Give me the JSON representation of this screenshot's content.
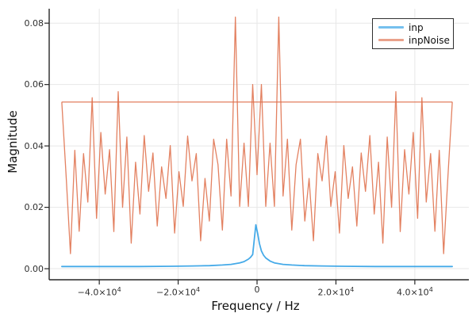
{
  "chart_data": {
    "type": "line",
    "title": "",
    "xlabel": "Frequency / Hz",
    "ylabel": "Magnitude",
    "xlim": [
      -52700,
      53700
    ],
    "ylim": [
      -0.0036,
      0.0847
    ],
    "grid": true,
    "grid_color": "#e7e7e7",
    "axis_color": "#262626",
    "background_color": "#ffffff",
    "legend": {
      "position": "top-right",
      "border_color": "#2f2f2f",
      "background": "#ffffff"
    },
    "x_ticks": {
      "values": [
        -40000,
        -20000,
        0,
        20000,
        40000
      ],
      "labels": [
        "−4.0×10^4",
        "−2.0×10^4",
        "0",
        "2.0×10^4",
        "4.0×10^4"
      ]
    },
    "y_ticks": {
      "values": [
        0.0,
        0.02,
        0.04,
        0.06,
        0.08
      ],
      "labels": [
        "0.00",
        "0.02",
        "0.04",
        "0.06",
        "0.08"
      ]
    },
    "series": [
      {
        "name": "inp",
        "color": "#2b9ee5",
        "points": [
          [
            -49500,
            0.0007
          ],
          [
            -40000,
            0.0007
          ],
          [
            -30000,
            0.0007
          ],
          [
            -22000,
            0.0008
          ],
          [
            -16500,
            0.0009
          ],
          [
            -12000,
            0.001
          ],
          [
            -8800,
            0.0012
          ],
          [
            -6600,
            0.0014
          ],
          [
            -4400,
            0.0019
          ],
          [
            -3300,
            0.0023
          ],
          [
            -2200,
            0.0031
          ],
          [
            -1650,
            0.0037
          ],
          [
            -1100,
            0.0046
          ],
          [
            -300,
            0.0143
          ],
          [
            200,
            0.0112
          ],
          [
            600,
            0.0082
          ],
          [
            1100,
            0.0058
          ],
          [
            1650,
            0.0044
          ],
          [
            2200,
            0.0035
          ],
          [
            3300,
            0.0025
          ],
          [
            4400,
            0.0019
          ],
          [
            6600,
            0.0014
          ],
          [
            8800,
            0.0012
          ],
          [
            12000,
            0.001
          ],
          [
            16500,
            0.0009
          ],
          [
            22000,
            0.0008
          ],
          [
            30000,
            0.0007
          ],
          [
            40000,
            0.0007
          ],
          [
            49500,
            0.0007
          ]
        ]
      },
      {
        "name": "inpNoise",
        "color": "#df6f4b",
        "flat_line": {
          "y": 0.0543,
          "x_start": -49500,
          "x_end": 49500
        },
        "points": [
          [
            -49500,
            0.0542
          ],
          [
            -48400,
            0.03
          ],
          [
            -47300,
            0.0049
          ],
          [
            -46200,
            0.0386
          ],
          [
            -45100,
            0.0122
          ],
          [
            -44000,
            0.0375
          ],
          [
            -42900,
            0.0217
          ],
          [
            -41800,
            0.0557
          ],
          [
            -40700,
            0.0164
          ],
          [
            -39600,
            0.0444
          ],
          [
            -38500,
            0.0243
          ],
          [
            -37400,
            0.0388
          ],
          [
            -36300,
            0.0121
          ],
          [
            -35200,
            0.0577
          ],
          [
            -34100,
            0.02
          ],
          [
            -33000,
            0.0429
          ],
          [
            -31900,
            0.0083
          ],
          [
            -30800,
            0.0347
          ],
          [
            -29700,
            0.0178
          ],
          [
            -28600,
            0.0434
          ],
          [
            -27500,
            0.0252
          ],
          [
            -26400,
            0.0377
          ],
          [
            -25300,
            0.0139
          ],
          [
            -24200,
            0.0332
          ],
          [
            -23100,
            0.0229
          ],
          [
            -22000,
            0.0401
          ],
          [
            -20900,
            0.0116
          ],
          [
            -19800,
            0.0316
          ],
          [
            -18700,
            0.0203
          ],
          [
            -17600,
            0.0432
          ],
          [
            -16500,
            0.0286
          ],
          [
            -15400,
            0.0375
          ],
          [
            -14300,
            0.0091
          ],
          [
            -13200,
            0.0294
          ],
          [
            -12100,
            0.0155
          ],
          [
            -11000,
            0.0422
          ],
          [
            -9900,
            0.0339
          ],
          [
            -8800,
            0.0126
          ],
          [
            -7700,
            0.0422
          ],
          [
            -6600,
            0.0237
          ],
          [
            -5500,
            0.082
          ],
          [
            -4400,
            0.0203
          ],
          [
            -3300,
            0.0409
          ],
          [
            -2200,
            0.0203
          ],
          [
            -1100,
            0.06
          ],
          [
            0,
            0.0306
          ],
          [
            1100,
            0.06
          ],
          [
            2200,
            0.0203
          ],
          [
            3300,
            0.0409
          ],
          [
            4400,
            0.0203
          ],
          [
            5500,
            0.082
          ],
          [
            6600,
            0.0237
          ],
          [
            7700,
            0.0422
          ],
          [
            8800,
            0.0126
          ],
          [
            9900,
            0.0339
          ],
          [
            11000,
            0.0422
          ],
          [
            12100,
            0.0155
          ],
          [
            13200,
            0.0294
          ],
          [
            14300,
            0.0091
          ],
          [
            15400,
            0.0375
          ],
          [
            16500,
            0.0286
          ],
          [
            17600,
            0.0432
          ],
          [
            18700,
            0.0203
          ],
          [
            19800,
            0.0316
          ],
          [
            20900,
            0.0116
          ],
          [
            22000,
            0.0401
          ],
          [
            23100,
            0.0229
          ],
          [
            24200,
            0.0332
          ],
          [
            25300,
            0.0139
          ],
          [
            26400,
            0.0377
          ],
          [
            27500,
            0.0252
          ],
          [
            28600,
            0.0434
          ],
          [
            29700,
            0.0178
          ],
          [
            30800,
            0.0347
          ],
          [
            31900,
            0.0083
          ],
          [
            33000,
            0.0429
          ],
          [
            34100,
            0.02
          ],
          [
            35200,
            0.0577
          ],
          [
            36300,
            0.0121
          ],
          [
            37400,
            0.0388
          ],
          [
            38500,
            0.0243
          ],
          [
            39600,
            0.0444
          ],
          [
            40700,
            0.0164
          ],
          [
            41800,
            0.0557
          ],
          [
            42900,
            0.0217
          ],
          [
            44000,
            0.0375
          ],
          [
            45100,
            0.0122
          ],
          [
            46200,
            0.0386
          ],
          [
            47300,
            0.0049
          ],
          [
            48400,
            0.03
          ],
          [
            49500,
            0.0542
          ]
        ]
      }
    ]
  }
}
